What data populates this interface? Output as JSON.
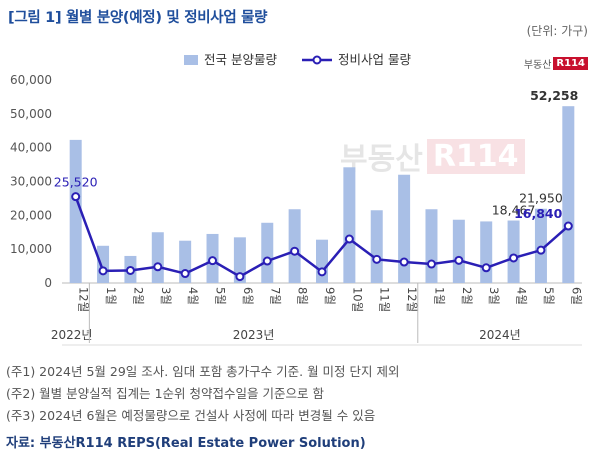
{
  "title": "[그림 1] 월별 분양(예정) 및 정비사업 물량",
  "unit": "(단위: 가구)",
  "brand": {
    "text": "부동산",
    "badge": "R114"
  },
  "watermark": {
    "text": "부동산",
    "badge": "R114"
  },
  "notes": [
    "(주1) 2024년 5월 29일 조사. 임대 포함 총가구수 기준. 월 미정 단지 제외",
    "(주2) 월별 분양실적 집계는 1순위 청약접수일을 기준으로 함",
    "(주3) 2024년 6월은 예정물량으로 건설사 사정에 따라 변경될 수 있음"
  ],
  "source": "자료: 부동산R114 REPS(Real Estate Power Solution)",
  "chart_data": {
    "type": "bar+line",
    "categories": [
      "12월",
      "1월",
      "2월",
      "3월",
      "4월",
      "5월",
      "6월",
      "7월",
      "8월",
      "9월",
      "10월",
      "11월",
      "12월",
      "1월",
      "2월",
      "3월",
      "4월",
      "5월",
      "6월"
    ],
    "year_groups": [
      {
        "label": "2022년",
        "start": 0,
        "end": 0
      },
      {
        "label": "2023년",
        "start": 1,
        "end": 12
      },
      {
        "label": "2024년",
        "start": 13,
        "end": 18
      }
    ],
    "series": [
      {
        "name": "전국 분양물량",
        "kind": "bar",
        "color": "#a9bfe6",
        "values": [
          42300,
          11000,
          8000,
          15000,
          12500,
          14500,
          13500,
          17800,
          21800,
          12800,
          34200,
          21500,
          32000,
          21800,
          18700,
          18200,
          18467,
          21950,
          52258
        ]
      },
      {
        "name": "정비사업 물량",
        "kind": "line",
        "color": "#2a1fb5",
        "values": [
          25520,
          3600,
          3700,
          4800,
          2800,
          6600,
          1900,
          6500,
          9400,
          3300,
          13000,
          7000,
          6200,
          5600,
          6700,
          4500,
          7400,
          9700,
          16840
        ]
      }
    ],
    "labels": [
      {
        "series": 1,
        "index": 0,
        "text": "25,520"
      },
      {
        "series": 0,
        "index": 16,
        "text": "18,467"
      },
      {
        "series": 0,
        "index": 17,
        "text": "21,950"
      },
      {
        "series": 0,
        "index": 18,
        "text": "52,258"
      },
      {
        "series": 1,
        "index": 18,
        "text": "16,840"
      }
    ],
    "yticks": [
      "0",
      "10,000",
      "20,000",
      "30,000",
      "40,000",
      "50,000",
      "60,000"
    ],
    "ylim": [
      0,
      60000
    ],
    "legend": "top-center"
  }
}
